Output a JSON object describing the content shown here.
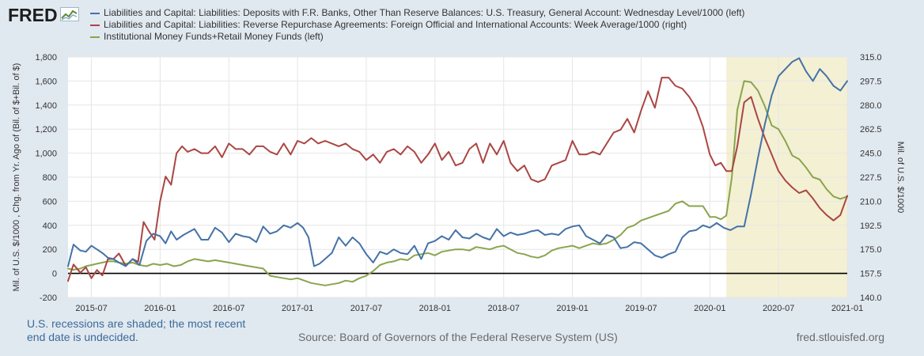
{
  "logo": {
    "text": "FRED"
  },
  "chart_data": {
    "type": "line",
    "x_range": [
      2015.33,
      2021.0
    ],
    "x_ticks": [
      {
        "x": 2015.5,
        "label": "2015-07"
      },
      {
        "x": 2016.0,
        "label": "2016-01"
      },
      {
        "x": 2016.5,
        "label": "2016-07"
      },
      {
        "x": 2017.0,
        "label": "2017-01"
      },
      {
        "x": 2017.5,
        "label": "2017-07"
      },
      {
        "x": 2018.0,
        "label": "2018-01"
      },
      {
        "x": 2018.5,
        "label": "2018-07"
      },
      {
        "x": 2019.0,
        "label": "2019-01"
      },
      {
        "x": 2019.5,
        "label": "2019-07"
      },
      {
        "x": 2020.0,
        "label": "2020-01"
      },
      {
        "x": 2020.5,
        "label": "2020-07"
      },
      {
        "x": 2021.0,
        "label": "2021-01"
      }
    ],
    "y_left": {
      "label": "Mil. of U.S. $/1000 , Chg. from Yr. Ago of (Bil. of $+Bil. of $)",
      "min": -200,
      "max": 1800,
      "ticks": [
        {
          "v": -200,
          "label": "-200"
        },
        {
          "v": 0,
          "label": "0"
        },
        {
          "v": 200,
          "label": "200"
        },
        {
          "v": 400,
          "label": "400"
        },
        {
          "v": 600,
          "label": "600"
        },
        {
          "v": 800,
          "label": "800"
        },
        {
          "v": 1000,
          "label": "1,000"
        },
        {
          "v": 1200,
          "label": "1,200"
        },
        {
          "v": 1400,
          "label": "1,400"
        },
        {
          "v": 1600,
          "label": "1,600"
        },
        {
          "v": 1800,
          "label": "1,800"
        }
      ]
    },
    "y_right": {
      "label": "Mil. of U.S. $/1000",
      "min": 140,
      "max": 315,
      "ticks": [
        {
          "v": 140,
          "label": "140.0"
        },
        {
          "v": 157.5,
          "label": "157.5"
        },
        {
          "v": 175,
          "label": "175.0"
        },
        {
          "v": 192.5,
          "label": "192.5"
        },
        {
          "v": 210,
          "label": "210.0"
        },
        {
          "v": 227.5,
          "label": "227.5"
        },
        {
          "v": 245,
          "label": "245.0"
        },
        {
          "v": 262.5,
          "label": "262.5"
        },
        {
          "v": 280,
          "label": "280.0"
        },
        {
          "v": 297.5,
          "label": "297.5"
        },
        {
          "v": 315,
          "label": "315.0"
        }
      ]
    },
    "recession": {
      "start": 2020.12,
      "end": 2021.0
    },
    "zero_line": 0,
    "series": [
      {
        "name": "Liabilities and Capital: Liabilities: Deposits with F.R. Banks, Other Than Reserve Balances: U.S. Treasury, General Account: Wednesday Level/1000 (left)",
        "color": "#4572a7",
        "axis": "left",
        "x": [
          2015.33,
          2015.37,
          2015.42,
          2015.46,
          2015.5,
          2015.54,
          2015.58,
          2015.62,
          2015.66,
          2015.7,
          2015.75,
          2015.8,
          2015.85,
          2015.9,
          2015.95,
          2016.0,
          2016.04,
          2016.08,
          2016.12,
          2016.17,
          2016.25,
          2016.3,
          2016.35,
          2016.4,
          2016.45,
          2016.5,
          2016.55,
          2016.6,
          2016.65,
          2016.7,
          2016.75,
          2016.8,
          2016.85,
          2016.9,
          2016.95,
          2017.0,
          2017.04,
          2017.08,
          2017.12,
          2017.16,
          2017.2,
          2017.25,
          2017.3,
          2017.35,
          2017.4,
          2017.45,
          2017.5,
          2017.55,
          2017.6,
          2017.65,
          2017.7,
          2017.75,
          2017.8,
          2017.85,
          2017.9,
          2017.95,
          2018.0,
          2018.05,
          2018.1,
          2018.15,
          2018.2,
          2018.25,
          2018.3,
          2018.35,
          2018.4,
          2018.45,
          2018.5,
          2018.55,
          2018.6,
          2018.65,
          2018.7,
          2018.75,
          2018.8,
          2018.85,
          2018.9,
          2018.95,
          2019.0,
          2019.05,
          2019.1,
          2019.15,
          2019.2,
          2019.25,
          2019.3,
          2019.35,
          2019.4,
          2019.45,
          2019.5,
          2019.55,
          2019.6,
          2019.65,
          2019.7,
          2019.75,
          2019.8,
          2019.85,
          2019.9,
          2019.95,
          2020.0,
          2020.05,
          2020.1,
          2020.15,
          2020.2,
          2020.25,
          2020.3,
          2020.35,
          2020.4,
          2020.45,
          2020.5,
          2020.55,
          2020.6,
          2020.65,
          2020.7,
          2020.75,
          2020.8,
          2020.85,
          2020.9,
          2020.95,
          2021.0
        ],
        "y": [
          60,
          240,
          190,
          180,
          230,
          200,
          170,
          130,
          120,
          90,
          60,
          120,
          70,
          270,
          330,
          310,
          250,
          350,
          280,
          320,
          370,
          280,
          280,
          380,
          340,
          260,
          330,
          310,
          300,
          260,
          390,
          330,
          350,
          400,
          380,
          420,
          380,
          300,
          60,
          80,
          120,
          170,
          300,
          230,
          300,
          250,
          160,
          90,
          180,
          160,
          200,
          170,
          160,
          230,
          120,
          250,
          270,
          310,
          280,
          360,
          300,
          290,
          330,
          300,
          280,
          370,
          310,
          340,
          320,
          330,
          350,
          360,
          320,
          330,
          320,
          370,
          390,
          400,
          310,
          280,
          250,
          320,
          300,
          210,
          220,
          260,
          250,
          200,
          150,
          130,
          160,
          180,
          300,
          350,
          360,
          400,
          380,
          420,
          380,
          360,
          390,
          390,
          660,
          960,
          1240,
          1480,
          1640,
          1700,
          1760,
          1790,
          1680,
          1600,
          1700,
          1640,
          1560,
          1520,
          1600
        ]
      },
      {
        "name": "Liabilities and Capital: Liabilities: Reverse Repurchase Agreements: Foreign Official and International Accounts: Week Average/1000 (right)",
        "color": "#aa4643",
        "axis": "right",
        "x": [
          2015.33,
          2015.37,
          2015.42,
          2015.46,
          2015.5,
          2015.54,
          2015.58,
          2015.62,
          2015.66,
          2015.7,
          2015.75,
          2015.8,
          2015.84,
          2015.88,
          2015.92,
          2015.96,
          2016.0,
          2016.04,
          2016.08,
          2016.12,
          2016.16,
          2016.2,
          2016.25,
          2016.3,
          2016.35,
          2016.4,
          2016.45,
          2016.5,
          2016.55,
          2016.6,
          2016.65,
          2016.7,
          2016.75,
          2016.8,
          2016.85,
          2016.9,
          2016.95,
          2017.0,
          2017.05,
          2017.1,
          2017.15,
          2017.2,
          2017.25,
          2017.3,
          2017.35,
          2017.4,
          2017.45,
          2017.5,
          2017.55,
          2017.6,
          2017.65,
          2017.7,
          2017.75,
          2017.8,
          2017.85,
          2017.9,
          2017.95,
          2018.0,
          2018.05,
          2018.1,
          2018.15,
          2018.2,
          2018.25,
          2018.3,
          2018.35,
          2018.4,
          2018.45,
          2018.5,
          2018.55,
          2018.6,
          2018.65,
          2018.7,
          2018.75,
          2018.8,
          2018.85,
          2018.9,
          2018.95,
          2019.0,
          2019.05,
          2019.1,
          2019.15,
          2019.2,
          2019.25,
          2019.3,
          2019.35,
          2019.4,
          2019.45,
          2019.5,
          2019.55,
          2019.6,
          2019.65,
          2019.7,
          2019.75,
          2019.8,
          2019.85,
          2019.9,
          2019.95,
          2020.0,
          2020.04,
          2020.08,
          2020.12,
          2020.16,
          2020.2,
          2020.25,
          2020.3,
          2020.35,
          2020.4,
          2020.45,
          2020.5,
          2020.55,
          2020.6,
          2020.65,
          2020.7,
          2020.75,
          2020.8,
          2020.85,
          2020.9,
          2020.95,
          2021.0
        ],
        "y": [
          152,
          164,
          158,
          162,
          154,
          160,
          156,
          168,
          168,
          172,
          163,
          168,
          166,
          195,
          188,
          182,
          210,
          228,
          222,
          245,
          250,
          246,
          248,
          245,
          245,
          250,
          242,
          252,
          248,
          248,
          244,
          250,
          250,
          246,
          244,
          252,
          244,
          254,
          252,
          256,
          252,
          254,
          252,
          250,
          252,
          248,
          246,
          240,
          244,
          238,
          246,
          248,
          244,
          250,
          246,
          238,
          244,
          252,
          240,
          246,
          236,
          238,
          248,
          252,
          238,
          252,
          244,
          254,
          238,
          232,
          236,
          226,
          224,
          226,
          236,
          238,
          240,
          254,
          244,
          244,
          246,
          244,
          252,
          260,
          262,
          270,
          260,
          276,
          290,
          278,
          300,
          300,
          294,
          292,
          286,
          278,
          264,
          244,
          236,
          238,
          232,
          232,
          250,
          282,
          286,
          270,
          256,
          244,
          232,
          225,
          220,
          216,
          218,
          212,
          205,
          200,
          196,
          200,
          214
        ]
      },
      {
        "name": "Institutional Money Funds+Retail Money Funds (left)",
        "color": "#89a54e",
        "axis": "left",
        "x": [
          2015.33,
          2015.37,
          2015.42,
          2015.46,
          2015.5,
          2015.54,
          2015.58,
          2015.62,
          2015.66,
          2015.7,
          2015.75,
          2015.8,
          2015.85,
          2015.9,
          2015.95,
          2016.0,
          2016.05,
          2016.1,
          2016.15,
          2016.2,
          2016.25,
          2016.3,
          2016.35,
          2016.4,
          2016.45,
          2016.5,
          2016.55,
          2016.6,
          2016.65,
          2016.7,
          2016.75,
          2016.8,
          2016.85,
          2016.9,
          2016.95,
          2017.0,
          2017.05,
          2017.1,
          2017.15,
          2017.2,
          2017.25,
          2017.3,
          2017.35,
          2017.4,
          2017.45,
          2017.5,
          2017.55,
          2017.6,
          2017.65,
          2017.7,
          2017.75,
          2017.8,
          2017.85,
          2017.9,
          2017.95,
          2018.0,
          2018.05,
          2018.1,
          2018.15,
          2018.2,
          2018.25,
          2018.3,
          2018.35,
          2018.4,
          2018.45,
          2018.5,
          2018.55,
          2018.6,
          2018.65,
          2018.7,
          2018.75,
          2018.8,
          2018.85,
          2018.9,
          2018.95,
          2019.0,
          2019.05,
          2019.1,
          2019.15,
          2019.2,
          2019.25,
          2019.3,
          2019.35,
          2019.4,
          2019.45,
          2019.5,
          2019.55,
          2019.6,
          2019.65,
          2019.7,
          2019.75,
          2019.8,
          2019.85,
          2019.9,
          2019.95,
          2020.0,
          2020.04,
          2020.08,
          2020.12,
          2020.16,
          2020.2,
          2020.25,
          2020.3,
          2020.35,
          2020.4,
          2020.45,
          2020.5,
          2020.55,
          2020.6,
          2020.65,
          2020.7,
          2020.75,
          2020.8,
          2020.85,
          2020.9,
          2020.95,
          2021.0
        ],
        "y": [
          40,
          30,
          40,
          60,
          70,
          80,
          90,
          100,
          100,
          90,
          80,
          90,
          70,
          60,
          80,
          70,
          80,
          60,
          70,
          100,
          120,
          110,
          100,
          110,
          100,
          90,
          80,
          70,
          60,
          50,
          40,
          -20,
          -30,
          -40,
          -50,
          -40,
          -60,
          -80,
          -90,
          -100,
          -90,
          -80,
          -60,
          -70,
          -40,
          -20,
          20,
          70,
          90,
          100,
          120,
          110,
          150,
          160,
          170,
          150,
          180,
          190,
          200,
          200,
          190,
          220,
          210,
          200,
          220,
          230,
          200,
          170,
          160,
          140,
          130,
          150,
          190,
          210,
          220,
          230,
          210,
          230,
          250,
          240,
          250,
          280,
          320,
          380,
          400,
          440,
          460,
          480,
          500,
          520,
          580,
          600,
          560,
          560,
          560,
          470,
          470,
          450,
          480,
          800,
          1360,
          1600,
          1590,
          1520,
          1390,
          1230,
          1200,
          1100,
          980,
          950,
          880,
          800,
          780,
          700,
          640,
          620,
          640
        ]
      }
    ]
  },
  "footer": {
    "recession_note": "U.S. recessions are shaded; the most recent end date is undecided.",
    "source": "Source: Board of Governors of the Federal Reserve System (US)",
    "url": "fred.stlouisfed.org"
  }
}
